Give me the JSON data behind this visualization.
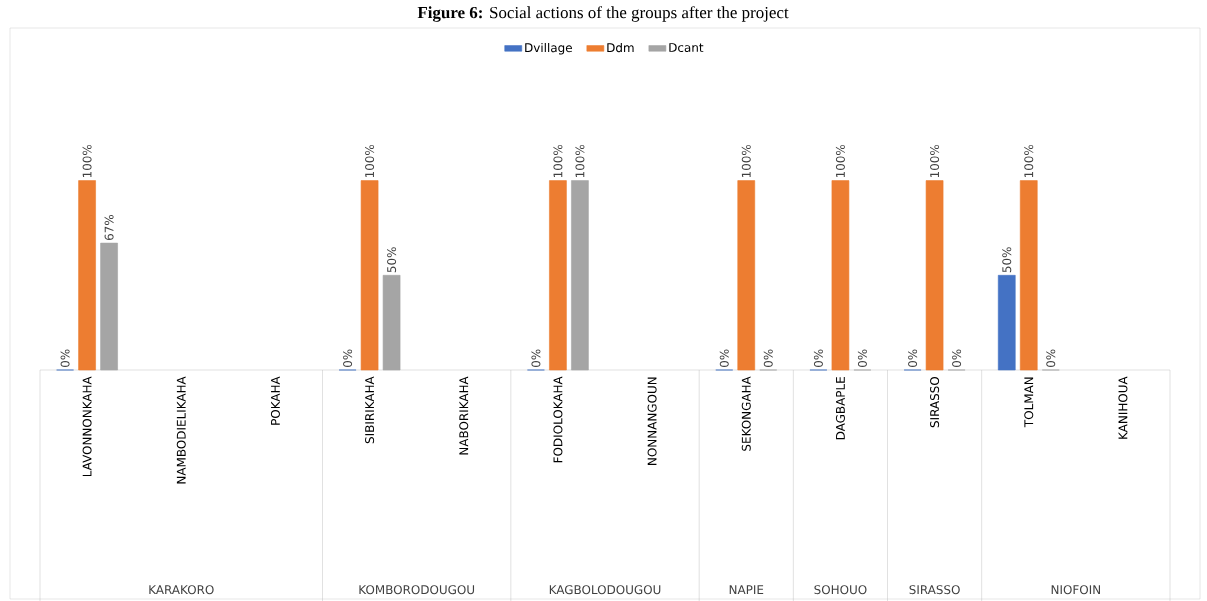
{
  "chart_data": {
    "type": "bar",
    "title": "**Figure 6:** Social actions of the groups after the project",
    "categories": [
      "LAVONNONKAHA",
      "NAMBODIELIKAHA",
      "POKAHA",
      "SIBIRIKAHA",
      "NABORIKAHA",
      "FODIOLOKAHA",
      "NONNANGOUN",
      "SEKONGAHA",
      "DAGBAPLE",
      "SIRASSO",
      "TOLMAN",
      "KANIHOUA"
    ],
    "series": [
      {
        "name": "Dvillage",
        "color": "#4472c4",
        "values": [
          0,
          null,
          null,
          0,
          null,
          0,
          null,
          0,
          0,
          0,
          50,
          null
        ],
        "value_labels": [
          "0%",
          null,
          null,
          "0%",
          null,
          "0%",
          null,
          "0%",
          "0%",
          "0%",
          "50%",
          null
        ]
      },
      {
        "name": "Ddm",
        "color": "#ed7d31",
        "values": [
          100,
          null,
          null,
          100,
          null,
          100,
          null,
          100,
          100,
          100,
          100,
          null
        ],
        "value_labels": [
          "100%",
          null,
          null,
          "100%",
          null,
          "100%",
          null,
          "100%",
          "100%",
          "100%",
          "100%",
          null
        ]
      },
      {
        "name": "Dcant",
        "color": "#a5a5a5",
        "values": [
          67,
          null,
          null,
          50,
          null,
          100,
          null,
          0,
          0,
          0,
          0,
          null
        ],
        "value_labels": [
          "67%",
          null,
          null,
          "50%",
          null,
          "100%",
          null,
          "0%",
          "0%",
          "0%",
          "0%",
          null
        ]
      }
    ],
    "legend": "top",
    "annotations": [
      "KARAKORO",
      "KOMBORODOUGOU",
      "KAGBOLODOUGOU",
      "NAPIE",
      "SOHOUO",
      "SIRASSO",
      "NIOFOIN"
    ]
  }
}
